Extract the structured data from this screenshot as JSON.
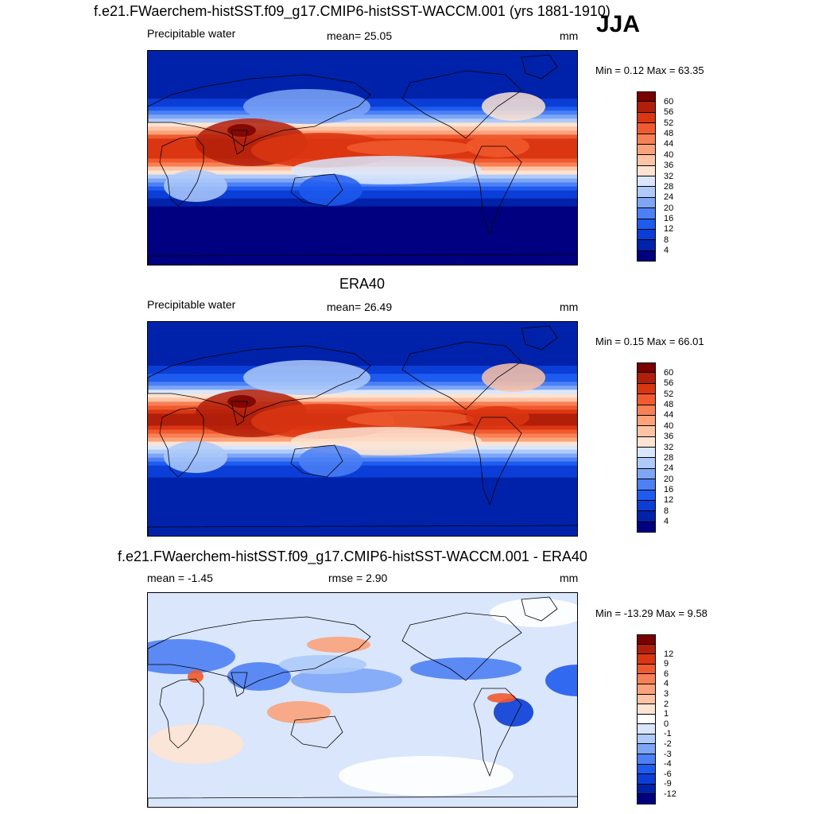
{
  "season": "JJA",
  "colors": {
    "abs": [
      "#000080",
      "#0022aa",
      "#0a3ed6",
      "#1e5bef",
      "#4c80f4",
      "#7ea6f7",
      "#aecaf9",
      "#d9e6fb",
      "#fde4d2",
      "#fcc3a4",
      "#fba27b",
      "#f78055",
      "#f05a2e",
      "#da3612",
      "#b11f0b",
      "#7a0000"
    ],
    "diff": [
      "#000080",
      "#0022aa",
      "#0a3ed6",
      "#1e5bef",
      "#4c80f4",
      "#7ea6f7",
      "#aecaf9",
      "#d9e6fb",
      "#ffffff",
      "#fde4d2",
      "#fcc3a4",
      "#fba27b",
      "#f78055",
      "#f05a2e",
      "#da3612",
      "#b11f0b",
      "#7a0000"
    ]
  },
  "panels": [
    {
      "title": "f.e21.FWaerchem-histSST.f09_g17.CMIP6-histSST-WACCM.001 (yrs 1881-1910)",
      "left_label": "Precipitable water",
      "center_label": "mean=  25.05",
      "units": "mm",
      "minmax": "Min =   0.12 Max =  63.35",
      "colorbar_labels": [
        "4",
        "8",
        "12",
        "16",
        "20",
        "24",
        "28",
        "32",
        "36",
        "40",
        "44",
        "48",
        "52",
        "56",
        "60"
      ]
    },
    {
      "title": "ERA40",
      "left_label": "Precipitable water",
      "center_label": "mean=  26.49",
      "units": "mm",
      "minmax": "Min =   0.15 Max =  66.01",
      "colorbar_labels": [
        "4",
        "8",
        "12",
        "16",
        "20",
        "24",
        "28",
        "32",
        "36",
        "40",
        "44",
        "48",
        "52",
        "56",
        "60"
      ]
    },
    {
      "title": "f.e21.FWaerchem-histSST.f09_g17.CMIP6-histSST-WACCM.001 - ERA40",
      "left_label": "mean =  -1.45",
      "center_label": "rmse =    2.90",
      "units": "mm",
      "minmax": "Min = -13.29 Max =   9.58",
      "colorbar_labels": [
        "-12",
        "-9",
        "-6",
        "-4",
        "-3",
        "-2",
        "-1",
        "0",
        "1",
        "2",
        "3",
        "4",
        "6",
        "9",
        "12"
      ]
    }
  ],
  "chart_data": [
    {
      "type": "heatmap",
      "title": "f.e21.FWaerchem-histSST.f09_g17.CMIP6-histSST-WACCM.001 (yrs 1881-1910)",
      "variable": "Precipitable water",
      "units": "mm",
      "mean": 25.05,
      "min": 0.12,
      "max": 63.35,
      "levels": [
        4,
        8,
        12,
        16,
        20,
        24,
        28,
        32,
        36,
        40,
        44,
        48,
        52,
        56,
        60
      ],
      "lon_range": [
        0,
        360
      ],
      "lat_range": [
        -90,
        90
      ]
    },
    {
      "type": "heatmap",
      "title": "ERA40",
      "variable": "Precipitable water",
      "units": "mm",
      "mean": 26.49,
      "min": 0.15,
      "max": 66.01,
      "levels": [
        4,
        8,
        12,
        16,
        20,
        24,
        28,
        32,
        36,
        40,
        44,
        48,
        52,
        56,
        60
      ],
      "lon_range": [
        0,
        360
      ],
      "lat_range": [
        -90,
        90
      ]
    },
    {
      "type": "heatmap",
      "title": "f.e21.FWaerchem-histSST.f09_g17.CMIP6-histSST-WACCM.001 - ERA40",
      "units": "mm",
      "mean": -1.45,
      "rmse": 2.9,
      "min": -13.29,
      "max": 9.58,
      "levels": [
        -12,
        -9,
        -6,
        -4,
        -3,
        -2,
        -1,
        0,
        1,
        2,
        3,
        4,
        6,
        9,
        12
      ],
      "lon_range": [
        0,
        360
      ],
      "lat_range": [
        -90,
        90
      ]
    }
  ]
}
